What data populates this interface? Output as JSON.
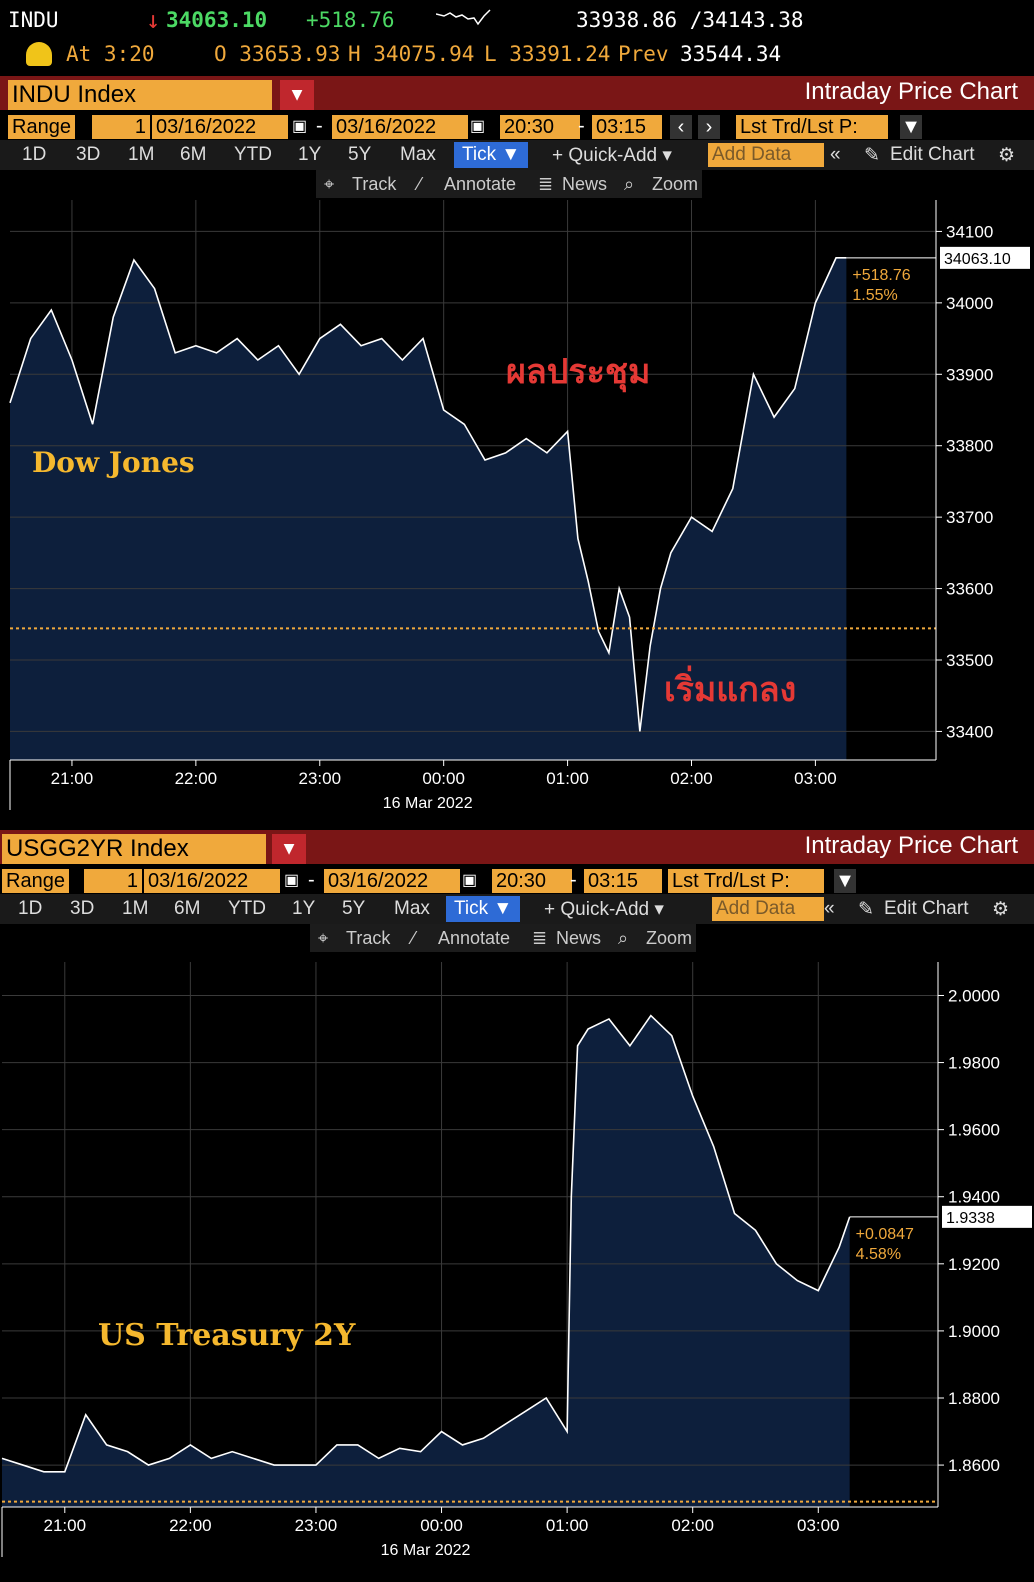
{
  "header": {
    "ticker": "INDU",
    "arrow": "↓",
    "last": "34063.10",
    "change": "+518.76",
    "bid_ask": "33938.86 /34143.38",
    "time": "At 3:20",
    "open": "O 33653.93",
    "high": "H 34075.94",
    "low": "L 33391.24",
    "prev_label": "Prev",
    "prev": "33544.34"
  },
  "colors": {
    "accent": "#f0a93c",
    "title_bar": "#7a1616",
    "fill": "#0d1f3c",
    "up": "#4cd964",
    "down": "#e53935",
    "annotation_red": "#e53935",
    "annotation_gold": "#f5b82e"
  },
  "panels": [
    {
      "ticker_box": "INDU Index",
      "chart_title": "Intraday Price Chart",
      "range_label": "Range",
      "range_num": "1",
      "date_from": "03/16/2022",
      "date_to": "03/16/2022",
      "time_from": "20:30",
      "time_to": "03:15",
      "mode": "Lst Trd/Lst P:",
      "tabs": [
        "1D",
        "3D",
        "1M",
        "6M",
        "YTD",
        "1Y",
        "5Y",
        "Max"
      ],
      "tick_label": "Tick ▼",
      "quick_add": "+ Quick-Add ▾",
      "add_data": "Add Data",
      "edit_chart": "Edit Chart",
      "tools": [
        "Track",
        "Annotate",
        "News",
        "Zoom"
      ],
      "annotations": {
        "series_label": "Dow Jones",
        "event_label": "ผลประชุม",
        "low_label": "เริ่มแกลง"
      },
      "last_tag": "34063.10",
      "change_tag": "+518.76",
      "pct_tag": "1.55%"
    },
    {
      "ticker_box": "USGG2YR Index",
      "chart_title": "Intraday Price Chart",
      "range_label": "Range",
      "range_num": "1",
      "date_from": "03/16/2022",
      "date_to": "03/16/2022",
      "time_from": "20:30",
      "time_to": "03:15",
      "mode": "Lst Trd/Lst P:",
      "tabs": [
        "1D",
        "3D",
        "1M",
        "6M",
        "YTD",
        "1Y",
        "5Y",
        "Max"
      ],
      "tick_label": "Tick ▼",
      "quick_add": "+ Quick-Add ▾",
      "add_data": "Add Data",
      "edit_chart": "Edit Chart",
      "tools": [
        "Track",
        "Annotate",
        "News",
        "Zoom"
      ],
      "annotations": {
        "series_label": "US Treasury 2Y"
      },
      "last_tag": "1.9338",
      "change_tag": "+0.0847",
      "pct_tag": "4.58%"
    }
  ],
  "chart_data": [
    {
      "type": "area",
      "x_ticks": [
        "21:00",
        "22:00",
        "23:00",
        "00:00",
        "01:00",
        "02:00",
        "03:00"
      ],
      "x_date_label": "16 Mar 2022",
      "y_ticks": [
        "34100",
        "34000",
        "33900",
        "33800",
        "33700",
        "33600",
        "33500",
        "33400"
      ],
      "ylim": [
        33360,
        34130
      ],
      "reference_line": 33544.34,
      "x": [
        "20:30",
        "20:40",
        "20:50",
        "21:00",
        "21:10",
        "21:20",
        "21:30",
        "21:40",
        "21:50",
        "22:00",
        "22:10",
        "22:20",
        "22:30",
        "22:40",
        "22:50",
        "23:00",
        "23:10",
        "23:20",
        "23:30",
        "23:40",
        "23:50",
        "00:00",
        "00:10",
        "00:20",
        "00:30",
        "00:40",
        "00:50",
        "01:00",
        "01:05",
        "01:10",
        "01:15",
        "01:20",
        "01:25",
        "01:30",
        "01:35",
        "01:40",
        "01:45",
        "01:50",
        "02:00",
        "02:10",
        "02:20",
        "02:30",
        "02:40",
        "02:50",
        "03:00",
        "03:10",
        "03:15"
      ],
      "values": [
        33860,
        33950,
        33990,
        33920,
        33830,
        33980,
        34060,
        34020,
        33930,
        33940,
        33930,
        33950,
        33920,
        33940,
        33900,
        33950,
        33970,
        33940,
        33950,
        33920,
        33950,
        33850,
        33830,
        33780,
        33790,
        33810,
        33790,
        33820,
        33670,
        33610,
        33540,
        33510,
        33600,
        33560,
        33400,
        33520,
        33600,
        33650,
        33700,
        33680,
        33740,
        33900,
        33840,
        33880,
        34000,
        34063,
        34063
      ]
    },
    {
      "type": "area",
      "x_ticks": [
        "21:00",
        "22:00",
        "23:00",
        "00:00",
        "01:00",
        "02:00",
        "03:00"
      ],
      "x_date_label": "16 Mar 2022",
      "y_ticks": [
        "2.0000",
        "1.9800",
        "1.9600",
        "1.9400",
        "1.9200",
        "1.9000",
        "1.8800",
        "1.8600"
      ],
      "ylim": [
        1.8475,
        2.007
      ],
      "reference_line": 1.8491,
      "x": [
        "20:30",
        "20:40",
        "20:50",
        "21:00",
        "21:10",
        "21:20",
        "21:30",
        "21:40",
        "21:50",
        "22:00",
        "22:10",
        "22:20",
        "22:30",
        "22:40",
        "22:50",
        "23:00",
        "23:10",
        "23:20",
        "23:30",
        "23:40",
        "23:50",
        "00:00",
        "00:10",
        "00:20",
        "00:30",
        "00:40",
        "00:50",
        "01:00",
        "01:02",
        "01:05",
        "01:10",
        "01:20",
        "01:30",
        "01:40",
        "01:50",
        "02:00",
        "02:10",
        "02:20",
        "02:30",
        "02:40",
        "02:50",
        "03:00",
        "03:10",
        "03:15"
      ],
      "values": [
        1.862,
        1.86,
        1.858,
        1.858,
        1.875,
        1.866,
        1.864,
        1.86,
        1.862,
        1.866,
        1.862,
        1.864,
        1.862,
        1.86,
        1.86,
        1.86,
        1.866,
        1.866,
        1.862,
        1.865,
        1.864,
        1.87,
        1.866,
        1.868,
        1.872,
        1.876,
        1.88,
        1.87,
        1.94,
        1.985,
        1.99,
        1.993,
        1.985,
        1.994,
        1.988,
        1.97,
        1.955,
        1.935,
        1.93,
        1.92,
        1.915,
        1.912,
        1.925,
        1.934
      ]
    }
  ]
}
